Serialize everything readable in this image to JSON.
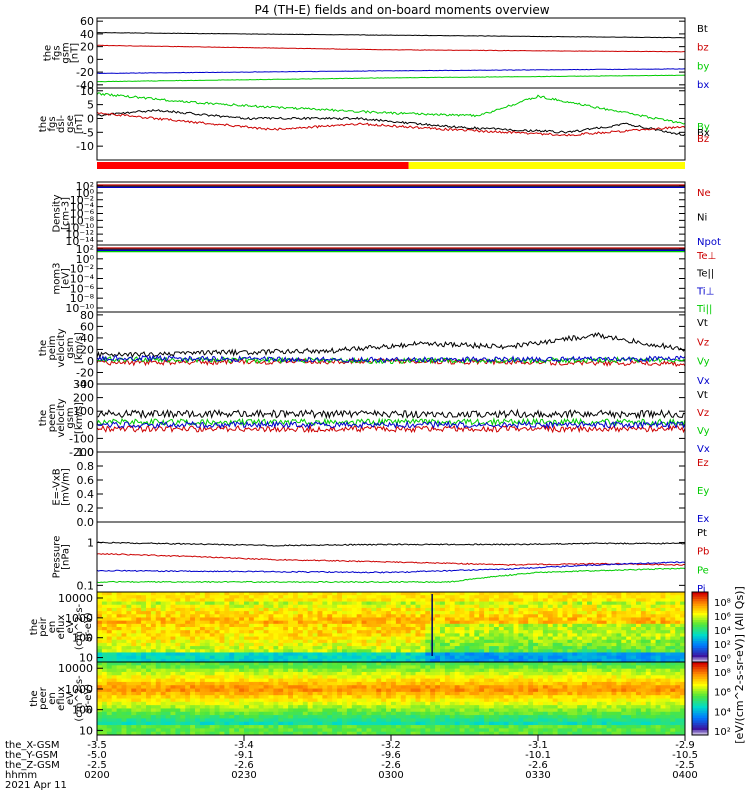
{
  "title": "P4 (TH-E) fields and on-board moments overview",
  "chart_data": [
    {
      "id": "p1",
      "type": "line",
      "ylabel": [
        "the",
        "fgs",
        "gsm",
        "[nT]"
      ],
      "yticks": [
        60,
        40,
        20,
        0,
        -20,
        -40
      ],
      "ylim": [
        -45,
        65
      ],
      "series": [
        {
          "name": "Bt",
          "color": "#000000",
          "x": [
            0,
            0.5,
            1
          ],
          "y": [
            42,
            38,
            34
          ]
        },
        {
          "name": "bz",
          "color": "#cc0000",
          "x": [
            0,
            0.5,
            1
          ],
          "y": [
            22,
            15,
            12
          ]
        },
        {
          "name": "by",
          "color": "#00cc00",
          "x": [
            0,
            0.5,
            1
          ],
          "y": [
            -35,
            -29,
            -25
          ]
        },
        {
          "name": "bx",
          "color": "#0000cc",
          "x": [
            0,
            0.5,
            1
          ],
          "y": [
            -22,
            -18,
            -15
          ]
        }
      ]
    },
    {
      "id": "p2",
      "type": "line",
      "ylabel": [
        "the",
        "fgs",
        "dsl-",
        "gse",
        "[nT]"
      ],
      "yticks": [
        10,
        5,
        0,
        -5,
        -10
      ],
      "ylim": [
        -15,
        11
      ],
      "series": [
        {
          "name": "By",
          "color": "#00cc00",
          "x": [
            0,
            0.15,
            0.3,
            0.5,
            0.65,
            0.75,
            0.85,
            1
          ],
          "y": [
            9,
            6,
            4,
            2,
            1,
            8,
            4,
            -2
          ]
        },
        {
          "name": "Bx",
          "color": "#000000",
          "x": [
            0,
            0.1,
            0.25,
            0.45,
            0.6,
            0.8,
            0.9,
            1
          ],
          "y": [
            1,
            3,
            0,
            0,
            -3,
            -5,
            -2,
            -6
          ]
        },
        {
          "name": "Bz",
          "color": "#cc0000",
          "x": [
            0,
            0.15,
            0.3,
            0.45,
            0.6,
            0.8,
            1
          ],
          "y": [
            2,
            -1,
            -4,
            -2,
            -4,
            -6,
            -3
          ]
        }
      ]
    },
    {
      "id": "p3",
      "type": "line",
      "ylabel": [
        "Density",
        "[cm-3]"
      ],
      "yticks": [
        "10²",
        "10⁰",
        "10⁻²",
        "10⁻⁴",
        "10⁻⁶",
        "10⁻⁸",
        "10⁻¹⁰",
        "10⁻¹²",
        "10⁻¹⁴"
      ],
      "ylim": [
        -14,
        2
      ],
      "series": [
        {
          "name": "Ne",
          "color": "#cc0000"
        },
        {
          "name": "Ni",
          "color": "#000000"
        },
        {
          "name": "Npot",
          "color": "#0000cc"
        }
      ]
    },
    {
      "id": "p4",
      "type": "line",
      "ylabel": [
        "mom3",
        "[eV]"
      ],
      "yticks": [
        "10²",
        "10⁰",
        "10⁻²",
        "10⁻⁴",
        "10⁻⁶",
        "10⁻⁸",
        "10⁻¹⁰"
      ],
      "ylim": [
        -10,
        2
      ],
      "series": [
        {
          "name": "Te⊥",
          "color": "#cc0000"
        },
        {
          "name": "Te||",
          "color": "#000000"
        },
        {
          "name": "Ti⊥",
          "color": "#0000cc"
        },
        {
          "name": "Ti||",
          "color": "#00cc00"
        }
      ]
    },
    {
      "id": "p5",
      "type": "line",
      "ylabel": [
        "the",
        "peim",
        "velocity",
        "gsm",
        "[km/s]"
      ],
      "yticks": [
        80,
        60,
        40,
        20,
        0,
        -20,
        -40
      ],
      "ylim": [
        -40,
        85
      ],
      "series": [
        {
          "name": "Vt",
          "color": "#000000",
          "x": [
            0,
            0.4,
            0.55,
            0.7,
            0.85,
            1
          ],
          "y": [
            10,
            18,
            30,
            25,
            45,
            20
          ]
        },
        {
          "name": "Vz",
          "color": "#cc0000",
          "x": [
            0,
            0.5,
            1
          ],
          "y": [
            -3,
            0,
            -5
          ]
        },
        {
          "name": "Vy",
          "color": "#00cc00",
          "x": [
            0,
            0.5,
            1
          ],
          "y": [
            3,
            0,
            2
          ]
        },
        {
          "name": "Vx",
          "color": "#0000cc",
          "x": [
            0,
            0.5,
            1
          ],
          "y": [
            5,
            2,
            4
          ]
        }
      ]
    },
    {
      "id": "p6",
      "type": "line",
      "ylabel": [
        "the",
        "peem",
        "velocity",
        "gsm",
        "[km/s]"
      ],
      "yticks": [
        300,
        200,
        100,
        0,
        -100,
        -200
      ],
      "ylim": [
        -200,
        300
      ],
      "series": [
        {
          "name": "Vt",
          "color": "#000000",
          "x": [
            0,
            1
          ],
          "y": [
            80,
            80
          ]
        },
        {
          "name": "Vz",
          "color": "#cc0000",
          "x": [
            0,
            1
          ],
          "y": [
            -30,
            -30
          ]
        },
        {
          "name": "Vy",
          "color": "#00cc00",
          "x": [
            0,
            1
          ],
          "y": [
            20,
            20
          ]
        },
        {
          "name": "Vx",
          "color": "#0000cc",
          "x": [
            0,
            1
          ],
          "y": [
            0,
            0
          ]
        }
      ]
    },
    {
      "id": "p7",
      "type": "line",
      "ylabel": [
        "E=-VxB",
        "[mV/m]"
      ],
      "yticks": [
        1.0,
        0.8,
        0.6,
        0.4,
        0.2,
        0.0
      ],
      "ylim": [
        0,
        1
      ],
      "series": [
        {
          "name": "Ez",
          "color": "#cc0000"
        },
        {
          "name": "Ey",
          "color": "#00cc00"
        },
        {
          "name": "Ex",
          "color": "#0000cc"
        }
      ]
    },
    {
      "id": "p8",
      "type": "line",
      "log": true,
      "ylabel": [
        "Pressure",
        "[nPa]"
      ],
      "yticks": [
        1.0,
        0.1
      ],
      "ylim": [
        0.07,
        3
      ],
      "series": [
        {
          "name": "Pt",
          "color": "#000000",
          "x": [
            0,
            0.3,
            0.5,
            0.7,
            0.85,
            1
          ],
          "y": [
            1.0,
            0.85,
            0.9,
            0.9,
            0.95,
            0.95
          ]
        },
        {
          "name": "Pb",
          "color": "#cc0000",
          "x": [
            0,
            0.3,
            0.5,
            0.7,
            0.85,
            1
          ],
          "y": [
            0.55,
            0.4,
            0.35,
            0.3,
            0.32,
            0.3
          ]
        },
        {
          "name": "Pe",
          "color": "#00cc00",
          "x": [
            0,
            0.4,
            0.6,
            0.75,
            1
          ],
          "y": [
            0.12,
            0.12,
            0.12,
            0.2,
            0.25
          ]
        },
        {
          "name": "Pi",
          "color": "#0000cc",
          "x": [
            0,
            0.5,
            0.7,
            0.85,
            1
          ],
          "y": [
            0.22,
            0.2,
            0.24,
            0.3,
            0.35
          ]
        }
      ]
    },
    {
      "id": "p9",
      "type": "heatmap",
      "ylabel": [
        "the",
        "peir",
        "en",
        "eflux",
        "eV",
        "(cm^2-s-",
        "sr-eV)"
      ],
      "yticks": [
        10000,
        1000,
        100,
        10
      ],
      "colorbar": {
        "ticks": [
          "10⁸",
          "10⁶",
          "10⁴",
          "10²",
          "10⁰"
        ]
      }
    },
    {
      "id": "p10",
      "type": "heatmap",
      "ylabel": [
        "the",
        "peer",
        "en",
        "eflux",
        "eV",
        "(cm^2-s-",
        "sr-eV)"
      ],
      "yticks": [
        10000,
        1000,
        100,
        10
      ],
      "colorbar": {
        "ticks": [
          "10⁸",
          "10⁶",
          "10⁴",
          "10²"
        ]
      }
    }
  ],
  "colorbar_label": "[eV/(cm^2-s-sr-eV)] (All Qs)]",
  "xaxis": {
    "row_labels": [
      "the_X-GSM",
      "the_Y-GSM",
      "the_Z-GSM",
      "hhmm",
      "2021 Apr 11"
    ],
    "ticks": [
      {
        "values": [
          "-3.5",
          "-5.0",
          "-2.5",
          "0200"
        ]
      },
      {
        "values": [
          "-3.4",
          "-9.1",
          "-2.6",
          "0230"
        ]
      },
      {
        "values": [
          "-3.2",
          "-9.6",
          "-2.6",
          "0300"
        ]
      },
      {
        "values": [
          "-3.1",
          "-10.1",
          "-2.6",
          "0330"
        ]
      },
      {
        "values": [
          "-2.9",
          "-10.5",
          "-2.5",
          "0400"
        ]
      }
    ]
  },
  "mode_bar": {
    "colors": [
      "#ff0000",
      "#ffff00"
    ],
    "split": 0.53
  }
}
